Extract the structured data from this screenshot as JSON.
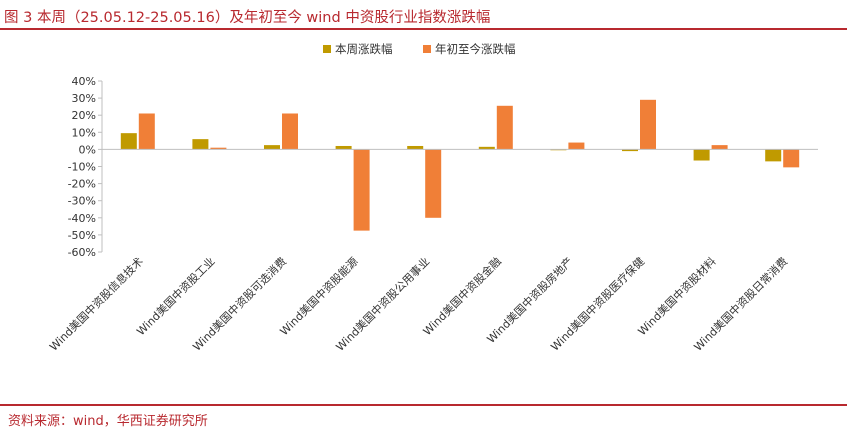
{
  "figure": {
    "title": "图 3  本周（25.05.12-25.05.16）及年初至今 wind 中资股行业指数涨跌幅",
    "source": "资料来源：wind，华西证券研究所"
  },
  "chart_data": {
    "type": "bar",
    "title": "",
    "xlabel": "",
    "ylabel": "",
    "ylim": [
      -60,
      40
    ],
    "yticks": [
      40,
      30,
      20,
      10,
      0,
      -10,
      -20,
      -30,
      -40,
      -50,
      -60
    ],
    "ytick_labels": [
      "40%",
      "30%",
      "20%",
      "10%",
      "0%",
      "-10%",
      "-20%",
      "-30%",
      "-40%",
      "-50%",
      "-60%"
    ],
    "grid": false,
    "legend_position": "top-center",
    "categories": [
      "Wind美国中资股信息技术",
      "Wind美国中资股工业",
      "Wind美国中资股可选消费",
      "Wind美国中资股能源",
      "Wind美国中资股公用事业",
      "Wind美国中资股金融",
      "Wind美国中资股房地产",
      "Wind美国中资股医疗保健",
      "Wind美国中资股材料",
      "Wind美国中资股日常消费"
    ],
    "series": [
      {
        "name": "本周涨跌幅",
        "color": "#c09a00",
        "values": [
          9.5,
          6.0,
          2.5,
          2.0,
          2.0,
          1.5,
          -0.5,
          -1.0,
          -6.5,
          -7.0
        ]
      },
      {
        "name": "年初至今涨跌幅",
        "color": "#f07f37",
        "values": [
          21.0,
          1.0,
          21.0,
          -47.5,
          -40.0,
          25.5,
          4.0,
          29.0,
          2.5,
          -10.5
        ]
      }
    ]
  }
}
